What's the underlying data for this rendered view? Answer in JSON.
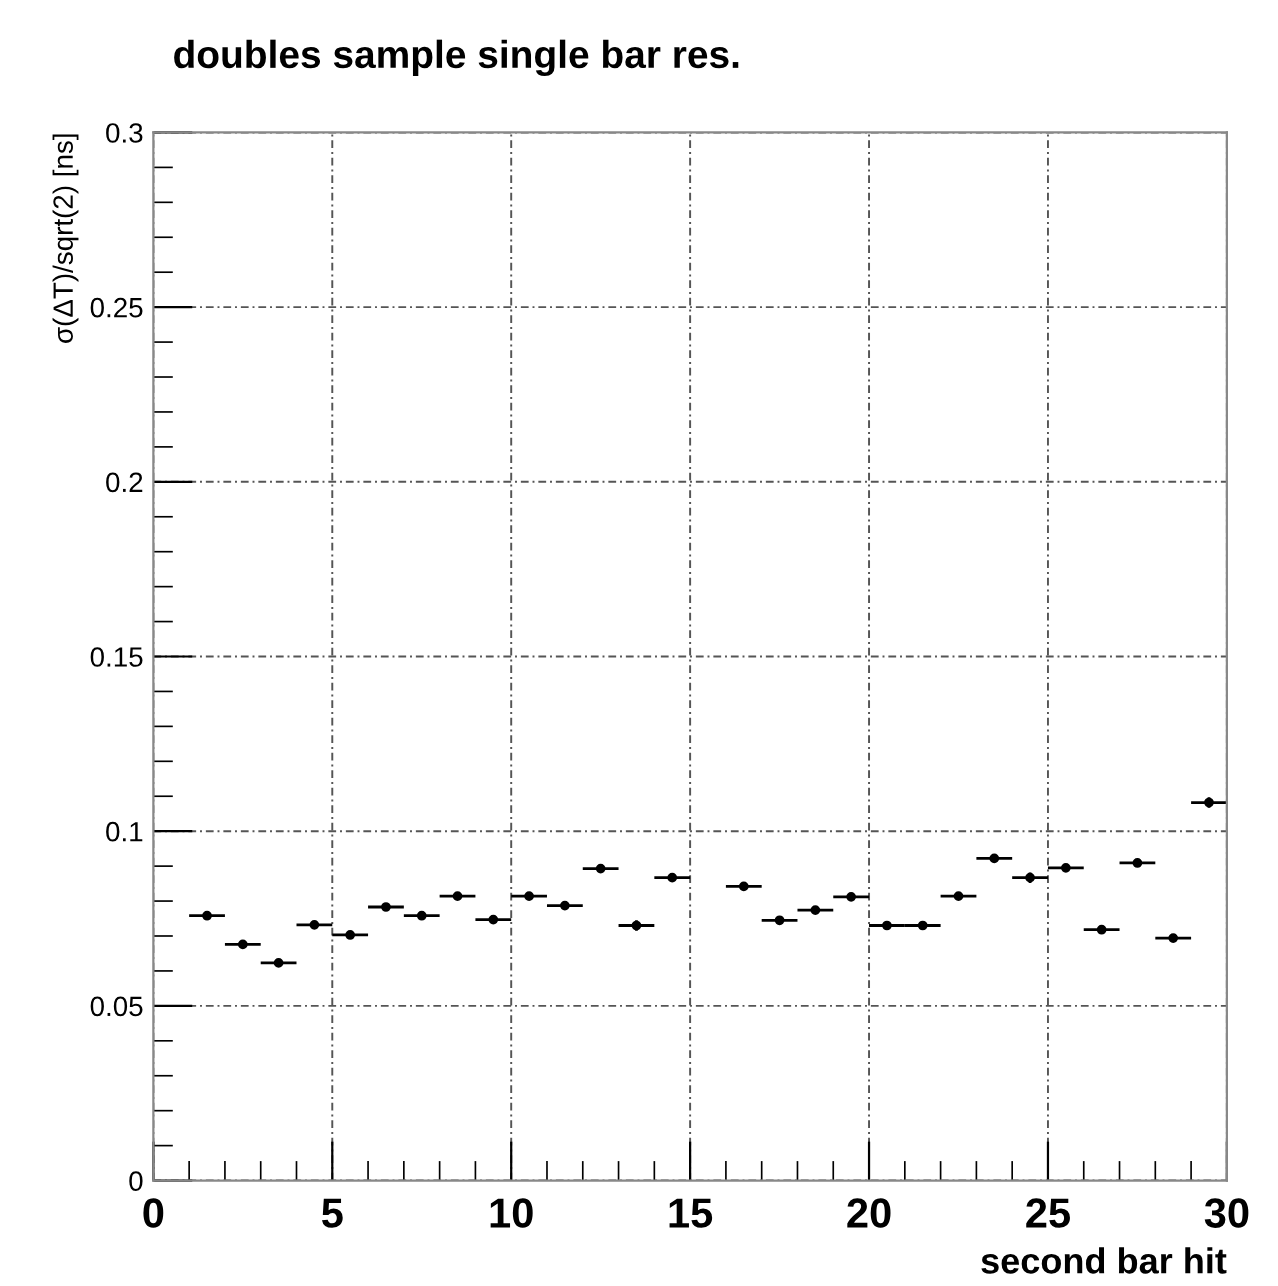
{
  "chart_data": {
    "type": "scatter",
    "title": "doubles sample single bar res.",
    "xlabel": "second bar hit",
    "ylabel": "σ(ΔT)/sqrt(2) [ns]",
    "x": [
      1.5,
      2.5,
      3.5,
      4.5,
      5.5,
      6.5,
      7.5,
      8.5,
      9.5,
      10.5,
      11.5,
      12.5,
      13.5,
      14.5,
      16.5,
      17.5,
      18.5,
      19.5,
      20.5,
      21.5,
      22.5,
      23.5,
      24.5,
      25.5,
      26.5,
      27.5,
      28.5,
      29.5
    ],
    "values": [
      0.0758,
      0.0676,
      0.0623,
      0.0732,
      0.0703,
      0.0783,
      0.0758,
      0.0814,
      0.0747,
      0.0814,
      0.0787,
      0.0893,
      0.073,
      0.0867,
      0.0842,
      0.0745,
      0.0774,
      0.0812,
      0.073,
      0.073,
      0.0814,
      0.0922,
      0.0867,
      0.0895,
      0.0718,
      0.0909,
      0.0694,
      0.1082
    ],
    "errors": [
      0.001,
      0.001,
      0.001,
      0.001,
      0.001,
      0.001,
      0.001,
      0.001,
      0.001,
      0.001,
      0.001,
      0.001,
      0.0015,
      0.001,
      0.001,
      0.001,
      0.001,
      0.001,
      0.001,
      0.001,
      0.001,
      0.001,
      0.0015,
      0.001,
      0.001,
      0.001,
      0.001,
      0.0015
    ],
    "xerrors": [
      0.5,
      0.5,
      0.5,
      0.5,
      0.5,
      0.5,
      0.5,
      0.5,
      0.5,
      0.5,
      0.5,
      0.5,
      0.5,
      0.5,
      0.5,
      0.5,
      0.5,
      0.5,
      0.5,
      0.5,
      0.5,
      0.5,
      0.5,
      0.5,
      0.5,
      0.5,
      0.5,
      0.5
    ],
    "color": "#000000",
    "marker": "circle",
    "xlim": [
      0,
      30
    ],
    "xticks": [
      0,
      5,
      10,
      15,
      20,
      25,
      30
    ],
    "ylim": [
      0,
      0.3
    ],
    "yticks": [
      0,
      0.05,
      0.1,
      0.15,
      0.2,
      0.25,
      0.3
    ],
    "grid": true
  }
}
